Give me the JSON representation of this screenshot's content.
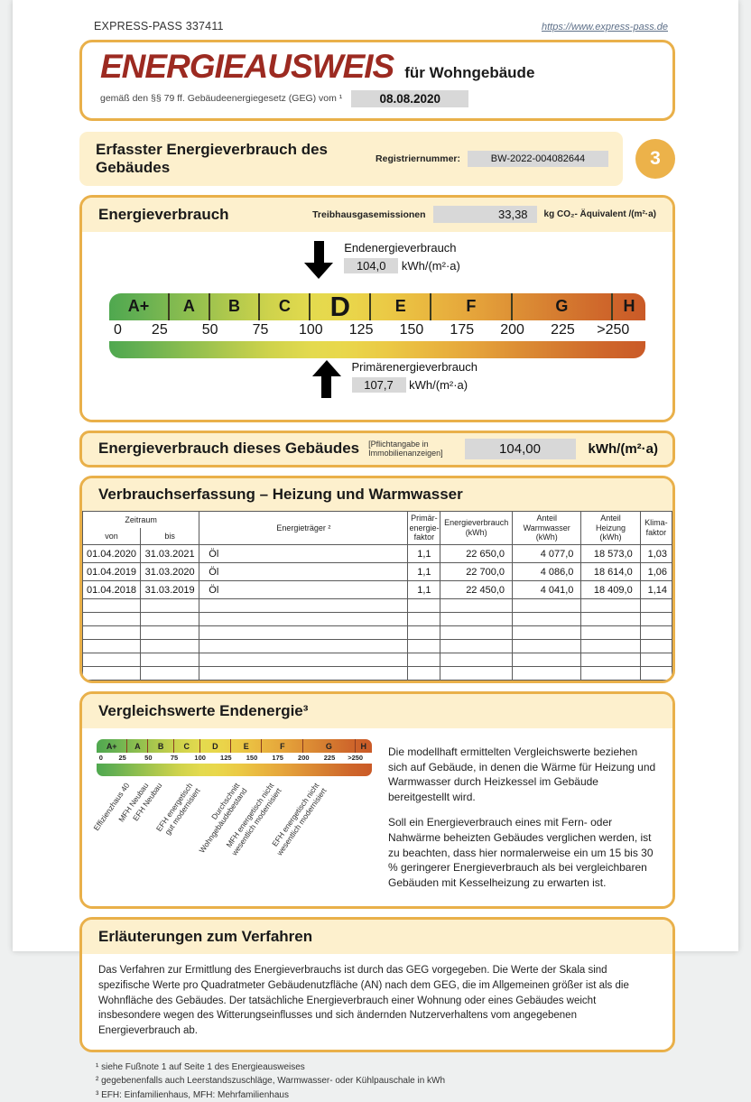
{
  "header": {
    "doc_number": "EXPRESS-PASS 337411",
    "website": "https://www.express-pass.de"
  },
  "title_block": {
    "title": "ENERGIEAUSWEIS",
    "subtitle": "für Wohngebäude",
    "law_text": "gemäß den §§ 79 ff. Gebäudeenergiegesetz (GEG) vom ¹",
    "law_date": "08.08.2020"
  },
  "section_bar": {
    "title": "Erfasster Energieverbrauch des Gebäudes",
    "register_label": "Registriernummer:",
    "register_number": "BW-2022-004082644",
    "page_badge": "3"
  },
  "scale": {
    "max": 266,
    "current_class": "D",
    "classes": [
      {
        "label": "A+",
        "from": 0,
        "to": 30
      },
      {
        "label": "A",
        "from": 30,
        "to": 50
      },
      {
        "label": "B",
        "from": 50,
        "to": 75
      },
      {
        "label": "C",
        "from": 75,
        "to": 100
      },
      {
        "label": "D",
        "from": 100,
        "to": 130
      },
      {
        "label": "E",
        "from": 130,
        "to": 160
      },
      {
        "label": "F",
        "from": 160,
        "to": 200
      },
      {
        "label": "G",
        "from": 200,
        "to": 250
      },
      {
        "label": "H",
        "from": 250,
        "to": 266
      }
    ],
    "ticks": [
      {
        "label": "0",
        "value": 0
      },
      {
        "label": "25",
        "value": 25
      },
      {
        "label": "50",
        "value": 50
      },
      {
        "label": "75",
        "value": 75
      },
      {
        "label": "100",
        "value": 100
      },
      {
        "label": "125",
        "value": 125
      },
      {
        "label": "150",
        "value": 150
      },
      {
        "label": "175",
        "value": 175
      },
      {
        "label": "200",
        "value": 200
      },
      {
        "label": "225",
        "value": 225
      },
      {
        "label": ">250",
        "value": 250
      }
    ]
  },
  "consumption_panel": {
    "title": "Energieverbrauch",
    "ghg_label": "Treibhausgasemissionen",
    "ghg_value": "33,38",
    "ghg_unit": "kg CO₂- Äquivalent /(m²·a)",
    "end_energy": {
      "label": "Endenergieverbrauch",
      "value": "104,0",
      "value_num": 104.0,
      "unit": "kWh/(m²·a)"
    },
    "primary_energy": {
      "label": "Primärenergieverbrauch",
      "value": "107,7",
      "value_num": 107.7,
      "unit": "kWh/(m²·a)"
    }
  },
  "building_value_bar": {
    "title": "Energieverbrauch dieses Gebäudes",
    "note": "[Pflichtangabe in\nImmobilienanzeigen]",
    "value": "104,00",
    "unit": "kWh/(m²·a)"
  },
  "consumption_table": {
    "title": "Verbrauchserfassung – Heizung und Warmwasser",
    "headers": {
      "zeitraum": "Zeitraum",
      "von": "von",
      "bis": "bis",
      "energietraeger": "Energieträger ²",
      "pef": "Primär-\nenergie-\nfaktor",
      "verbrauch": "Energieverbrauch\n(kWh)",
      "warmwasser": "Anteil\nWarmwasser\n(kWh)",
      "heizung": "Anteil\nHeizung\n(kWh)",
      "klima": "Klima-\nfaktor"
    },
    "rows": [
      [
        "01.04.2020",
        "31.03.2021",
        "Öl",
        "1,1",
        "22 650,0",
        "4 077,0",
        "18 573,0",
        "1,03"
      ],
      [
        "01.04.2019",
        "31.03.2020",
        "Öl",
        "1,1",
        "22 700,0",
        "4 086,0",
        "18 614,0",
        "1,06"
      ],
      [
        "01.04.2018",
        "31.03.2019",
        "Öl",
        "1,1",
        "22 450,0",
        "4 041,0",
        "18 409,0",
        "1,14"
      ]
    ],
    "empty_rows": 6
  },
  "comparison": {
    "title": "Vergleichswerte Endenergie³",
    "scale_labels": [
      {
        "text": "Effizienzhaus 40",
        "value": 27
      },
      {
        "text": "MFH Neubau",
        "value": 45
      },
      {
        "text": "EFH Neubau",
        "value": 58
      },
      {
        "text": "EFH energetisch\ngut modernisiert",
        "value": 88
      },
      {
        "text": "Durchschnitt\nWohngebäudebestand",
        "value": 133
      },
      {
        "text": "MFH energetisch nicht\nwesentlich modernisiert",
        "value": 167
      },
      {
        "text": "EFH energetisch nicht\nwesentlich modernisiert",
        "value": 210
      }
    ],
    "paragraph1": "Die modellhaft ermittelten Vergleichswerte beziehen sich auf Gebäude, in denen die Wärme für Heizung und Warmwasser durch Heizkessel im Gebäude bereitgestellt wird.",
    "paragraph2": "Soll ein Energieverbrauch eines mit Fern- oder Nahwärme beheizten Gebäudes verglichen werden, ist zu beachten, dass hier normalerweise ein um 15 bis 30 % geringerer Energieverbrauch als bei vergleichbaren Gebäuden mit Kesselheizung zu erwarten ist."
  },
  "explanation": {
    "title": "Erläuterungen zum Verfahren",
    "body": "Das Verfahren zur Ermittlung des Energieverbrauchs ist durch das GEG vorgegeben. Die Werte der Skala sind spezifische Werte pro Quadratmeter Gebäudenutzfläche (AN) nach dem GEG, die im Allgemeinen größer ist als die Wohnfläche des Gebäudes. Der tatsächliche Energieverbrauch einer Wohnung oder eines Gebäudes weicht insbesondere wegen des Witterungseinflusses und sich ändernden Nutzerverhaltens vom angegebenen Energieverbrauch ab."
  },
  "footnotes": [
    "¹ siehe Fußnote 1 auf Seite 1 des Energieausweises",
    "² gegebenenfalls auch Leerstandszuschläge, Warmwasser- oder Kühlpauschale in kWh",
    "³ EFH: Einfamilienhaus, MFH: Mehrfamilienhaus"
  ]
}
